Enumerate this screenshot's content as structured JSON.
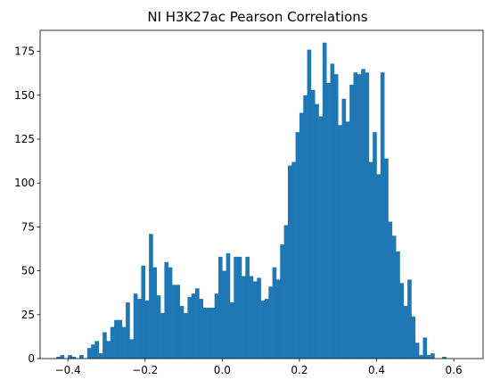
{
  "chart_data": {
    "type": "bar",
    "title": "NI H3K27ac Pearson Correlations",
    "xlabel": "",
    "ylabel": "",
    "xlim": [
      -0.472,
      0.676
    ],
    "ylim": [
      0,
      187
    ],
    "bin_width": 0.01,
    "bin_start": -0.43,
    "values": [
      1,
      2,
      0,
      2,
      1,
      0,
      2,
      0,
      6,
      8,
      10,
      3,
      15,
      10,
      18,
      22,
      22,
      18,
      32,
      11,
      37,
      34,
      53,
      33,
      71,
      52,
      36,
      26,
      55,
      52,
      42,
      42,
      30,
      26,
      35,
      37,
      40,
      34,
      29,
      29,
      29,
      37,
      58,
      50,
      60,
      32,
      58,
      58,
      47,
      58,
      47,
      44,
      46,
      33,
      34,
      41,
      52,
      45,
      65,
      76,
      110,
      112,
      129,
      140,
      150,
      176,
      153,
      145,
      138,
      180,
      157,
      168,
      162,
      133,
      148,
      135,
      156,
      163,
      162,
      165,
      163,
      112,
      129,
      105,
      163,
      114,
      78,
      70,
      61,
      43,
      30,
      45,
      24,
      9,
      2,
      12,
      2,
      3,
      0,
      0,
      1
    ]
  },
  "axes": {
    "x_ticks": [
      {
        "value": -0.4,
        "label": "−0.4"
      },
      {
        "value": -0.2,
        "label": "−0.2"
      },
      {
        "value": 0.0,
        "label": "0.0"
      },
      {
        "value": 0.2,
        "label": "0.2"
      },
      {
        "value": 0.4,
        "label": "0.4"
      },
      {
        "value": 0.6,
        "label": "0.6"
      }
    ],
    "y_ticks": [
      {
        "value": 0,
        "label": "0"
      },
      {
        "value": 25,
        "label": "25"
      },
      {
        "value": 50,
        "label": "50"
      },
      {
        "value": 75,
        "label": "75"
      },
      {
        "value": 100,
        "label": "100"
      },
      {
        "value": 125,
        "label": "125"
      },
      {
        "value": 150,
        "label": "150"
      },
      {
        "value": 175,
        "label": "175"
      }
    ]
  },
  "colors": {
    "bar": "#1f77b4",
    "axis": "#000000"
  }
}
